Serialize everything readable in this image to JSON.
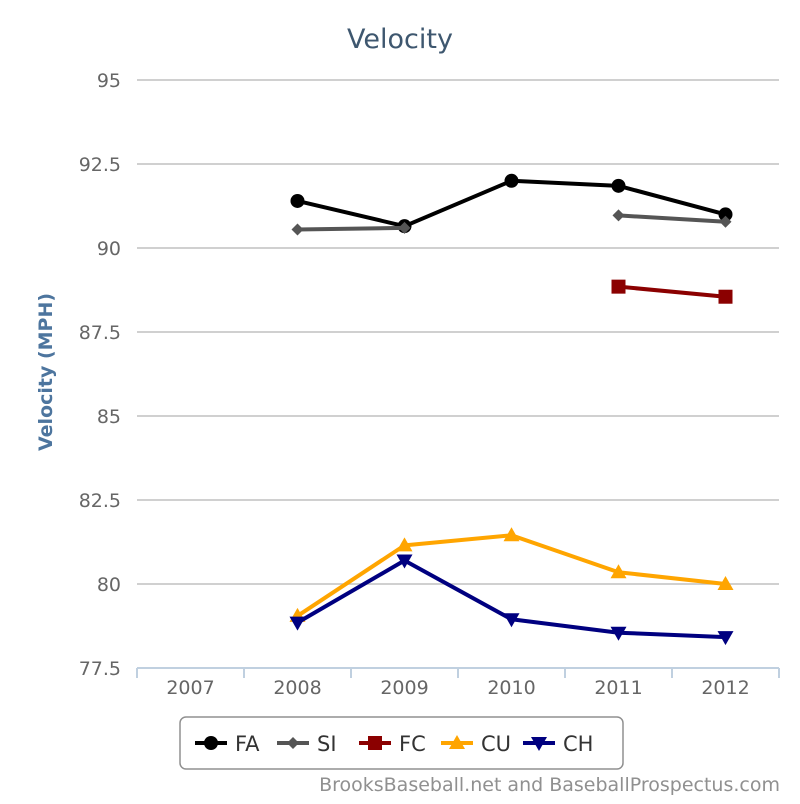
{
  "chart_data": {
    "type": "line",
    "title": "Velocity",
    "ylabel": "Velocity (MPH)",
    "xlabel": "",
    "categories": [
      "2007",
      "2008",
      "2009",
      "2010",
      "2011",
      "2012"
    ],
    "yticks": [
      "77.5",
      "80",
      "82.5",
      "85",
      "87.5",
      "90",
      "92.5",
      "95"
    ],
    "ylim": [
      77.5,
      95
    ],
    "grid": true,
    "legend_position": "bottom-center",
    "series": [
      {
        "name": "FA",
        "marker": "circle",
        "color": "#000000",
        "values": [
          null,
          91.4,
          90.65,
          92.0,
          91.85,
          91.0
        ]
      },
      {
        "name": "SI",
        "marker": "diamond",
        "color": "#555555",
        "values": [
          null,
          90.55,
          90.6,
          null,
          90.97,
          90.78
        ]
      },
      {
        "name": "FC",
        "marker": "square",
        "color": "#8b0000",
        "values": [
          null,
          null,
          null,
          null,
          88.85,
          88.55
        ]
      },
      {
        "name": "CU",
        "marker": "triangle-up",
        "color": "#ffa500",
        "values": [
          null,
          79.05,
          81.15,
          81.45,
          80.35,
          80.0
        ]
      },
      {
        "name": "CH",
        "marker": "triangle-down",
        "color": "#000080",
        "values": [
          null,
          78.85,
          80.7,
          78.95,
          78.55,
          78.42
        ]
      }
    ],
    "credit": "BrooksBaseball.net and BaseballProspectus.com"
  },
  "colors": {
    "title": "#3e576f",
    "axis_label": "#4d759e",
    "tick": "#666666",
    "grid": "#c0c0c0",
    "axis_line": "#c0d0e0",
    "legend_border": "#909090",
    "credit": "#909090"
  }
}
